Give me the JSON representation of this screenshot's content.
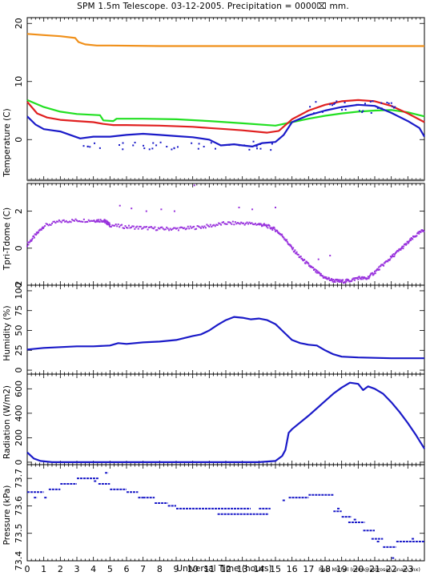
{
  "header": {
    "title": "SPM 1.5m Telescope. 03-12-2005. Precipitation = 0000⌧ mm."
  },
  "footer": {
    "xlabel": "Universal Time (hours)",
    "credit": "Raul Michel (rmm@astrosen.unam.mx)"
  },
  "colors": {
    "orange": "#f0901a",
    "green": "#22e022",
    "red": "#e02020",
    "blue": "#1a1ac8",
    "purple": "#9933dd",
    "gray": "#666666",
    "frame": "#000000"
  },
  "chart_data": [
    {
      "type": "line",
      "ylabel": "Temperature (C)",
      "xlim": [
        0,
        24
      ],
      "ylim": [
        -7,
        21
      ],
      "yticks": [
        0,
        10,
        20
      ],
      "xticks": [
        0,
        1,
        2,
        3,
        4,
        5,
        6,
        7,
        8,
        9,
        10,
        11,
        12,
        13,
        14,
        15,
        16,
        17,
        18,
        19,
        20,
        21,
        22,
        23
      ],
      "hline": -7,
      "series": [
        {
          "color": "orange",
          "points": [
            [
              0,
              18.2
            ],
            [
              1,
              18.0
            ],
            [
              2,
              17.8
            ],
            [
              2.9,
              17.5
            ],
            [
              3.1,
              16.8
            ],
            [
              3.5,
              16.4
            ],
            [
              4.2,
              16.2
            ],
            [
              5,
              16.2
            ],
            [
              8,
              16.1
            ],
            [
              12,
              16.1
            ],
            [
              16,
              16.1
            ],
            [
              20,
              16.1
            ],
            [
              24,
              16.1
            ]
          ]
        },
        {
          "color": "green",
          "points": [
            [
              0,
              6.8
            ],
            [
              1,
              5.6
            ],
            [
              2,
              4.8
            ],
            [
              3,
              4.4
            ],
            [
              4.4,
              4.2
            ],
            [
              4.6,
              3.3
            ],
            [
              5.2,
              3.2
            ],
            [
              5.4,
              3.6
            ],
            [
              7,
              3.6
            ],
            [
              9,
              3.5
            ],
            [
              11,
              3.2
            ],
            [
              13,
              2.8
            ],
            [
              15,
              2.4
            ],
            [
              16,
              3.0
            ],
            [
              17,
              3.6
            ],
            [
              18,
              4.1
            ],
            [
              19,
              4.5
            ],
            [
              20,
              4.8
            ],
            [
              21,
              5.0
            ],
            [
              22,
              5.1
            ],
            [
              23,
              4.7
            ],
            [
              24,
              4.0
            ]
          ]
        },
        {
          "color": "red",
          "points": [
            [
              0,
              6.5
            ],
            [
              0.6,
              4.5
            ],
            [
              1.2,
              3.8
            ],
            [
              2,
              3.4
            ],
            [
              3,
              3.2
            ],
            [
              4,
              3.0
            ],
            [
              4.6,
              2.7
            ],
            [
              5.2,
              2.5
            ],
            [
              6,
              2.5
            ],
            [
              8,
              2.4
            ],
            [
              10,
              2.2
            ],
            [
              11,
              2.0
            ],
            [
              12,
              1.8
            ],
            [
              13,
              1.6
            ],
            [
              14.5,
              1.2
            ],
            [
              15.2,
              1.5
            ],
            [
              16,
              3.5
            ],
            [
              17,
              5.0
            ],
            [
              18,
              6.0
            ],
            [
              19,
              6.6
            ],
            [
              20,
              6.8
            ],
            [
              21,
              6.6
            ],
            [
              22,
              5.8
            ],
            [
              23,
              4.5
            ],
            [
              24,
              3.0
            ]
          ]
        },
        {
          "color": "blue",
          "points": [
            [
              0,
              4.0
            ],
            [
              0.5,
              2.6
            ],
            [
              1,
              1.8
            ],
            [
              1.5,
              1.6
            ],
            [
              2,
              1.4
            ],
            [
              2.8,
              0.6
            ],
            [
              3.2,
              0.2
            ],
            [
              4,
              0.5
            ],
            [
              5,
              0.5
            ],
            [
              6,
              0.8
            ],
            [
              7,
              1.0
            ],
            [
              8,
              0.8
            ],
            [
              9,
              0.6
            ],
            [
              10,
              0.4
            ],
            [
              11,
              0.0
            ],
            [
              11.7,
              -1.0
            ],
            [
              12.5,
              -0.8
            ],
            [
              13,
              -1.0
            ],
            [
              13.6,
              -1.2
            ],
            [
              14.2,
              -0.6
            ],
            [
              15,
              -0.4
            ],
            [
              15.5,
              0.8
            ],
            [
              16,
              3.0
            ],
            [
              17,
              4.2
            ],
            [
              18,
              5.0
            ],
            [
              19,
              5.6
            ],
            [
              20,
              6.0
            ],
            [
              21,
              5.8
            ],
            [
              22,
              4.6
            ],
            [
              23,
              3.2
            ],
            [
              23.7,
              2.0
            ],
            [
              24,
              0.5
            ]
          ]
        }
      ]
    },
    {
      "type": "scatter",
      "ylabel": "Tpri-Tdome (C)",
      "xlim": [
        0,
        24
      ],
      "ylim": [
        -2,
        3.5
      ],
      "yticks": [
        -2,
        0,
        2
      ],
      "xticks": [
        0,
        1,
        2,
        3,
        4,
        5,
        6,
        7,
        8,
        9,
        10,
        11,
        12,
        13,
        14,
        15,
        16,
        17,
        18,
        19,
        20,
        21,
        22,
        23
      ],
      "series": [
        {
          "color": "purple",
          "points": [
            [
              0,
              0.2
            ],
            [
              0.5,
              0.7
            ],
            [
              1,
              1.2
            ],
            [
              2,
              1.45
            ],
            [
              3,
              1.5
            ],
            [
              4,
              1.5
            ],
            [
              4.6,
              1.5
            ],
            [
              4.8,
              1.4
            ],
            [
              5,
              1.25
            ],
            [
              6,
              1.15
            ],
            [
              7,
              1.1
            ],
            [
              8,
              1.05
            ],
            [
              9,
              1.05
            ],
            [
              10,
              1.1
            ],
            [
              11,
              1.2
            ],
            [
              12,
              1.35
            ],
            [
              13,
              1.35
            ],
            [
              14,
              1.3
            ],
            [
              14.5,
              1.2
            ],
            [
              15,
              1.0
            ],
            [
              15.5,
              0.6
            ],
            [
              16,
              0.0
            ],
            [
              16.5,
              -0.5
            ],
            [
              17,
              -0.9
            ],
            [
              17.5,
              -1.3
            ],
            [
              18,
              -1.6
            ],
            [
              18.5,
              -1.75
            ],
            [
              19,
              -1.8
            ],
            [
              19.5,
              -1.75
            ],
            [
              20,
              -1.6
            ],
            [
              20.5,
              -1.65
            ],
            [
              21,
              -1.3
            ],
            [
              21.5,
              -0.9
            ],
            [
              22,
              -0.5
            ],
            [
              22.5,
              -0.1
            ],
            [
              23,
              0.3
            ],
            [
              23.5,
              0.7
            ],
            [
              24,
              1.0
            ]
          ]
        }
      ],
      "outliers": [
        [
          5.6,
          2.3
        ],
        [
          6.3,
          2.15
        ],
        [
          7.2,
          2.0
        ],
        [
          8.1,
          2.1
        ],
        [
          8.9,
          2.0
        ],
        [
          10.1,
          3.4
        ],
        [
          12.8,
          2.2
        ],
        [
          13.6,
          2.1
        ],
        [
          15.0,
          2.2
        ],
        [
          17.6,
          -0.6
        ],
        [
          18.3,
          -0.4
        ]
      ]
    },
    {
      "type": "line",
      "ylabel": "Humidity (%)",
      "xlim": [
        0,
        24
      ],
      "ylim": [
        -5,
        107
      ],
      "yticks": [
        0,
        25,
        50,
        75,
        100
      ],
      "xticks": [
        0,
        1,
        2,
        3,
        4,
        5,
        6,
        7,
        8,
        9,
        10,
        11,
        12,
        13,
        14,
        15,
        16,
        17,
        18,
        19,
        20,
        21,
        22,
        23
      ],
      "series": [
        {
          "color": "blue",
          "points": [
            [
              0,
              26
            ],
            [
              1,
              28
            ],
            [
              2,
              29
            ],
            [
              3,
              30
            ],
            [
              4,
              30
            ],
            [
              5,
              31
            ],
            [
              5.5,
              34
            ],
            [
              6,
              33
            ],
            [
              7,
              35
            ],
            [
              8,
              36
            ],
            [
              9,
              38
            ],
            [
              10,
              43
            ],
            [
              10.5,
              45
            ],
            [
              11,
              50
            ],
            [
              11.5,
              57
            ],
            [
              12,
              63
            ],
            [
              12.5,
              67
            ],
            [
              13,
              66
            ],
            [
              13.5,
              64
            ],
            [
              14,
              65
            ],
            [
              14.5,
              63
            ],
            [
              15,
              58
            ],
            [
              15.5,
              48
            ],
            [
              16,
              38
            ],
            [
              16.5,
              34
            ],
            [
              17,
              32
            ],
            [
              17.5,
              31
            ],
            [
              18,
              25
            ],
            [
              18.5,
              20
            ],
            [
              19,
              17
            ],
            [
              20,
              16
            ],
            [
              21,
              15.5
            ],
            [
              22,
              15
            ],
            [
              23,
              15
            ],
            [
              24,
              15
            ]
          ]
        }
      ]
    },
    {
      "type": "line",
      "ylabel": "Radiation (W/m2)",
      "xlim": [
        0,
        24
      ],
      "ylim": [
        -20,
        720
      ],
      "yticks": [
        0,
        200,
        400,
        600
      ],
      "xticks": [
        0,
        1,
        2,
        3,
        4,
        5,
        6,
        7,
        8,
        9,
        10,
        11,
        12,
        13,
        14,
        15,
        16,
        17,
        18,
        19,
        20,
        21,
        22,
        23
      ],
      "series": [
        {
          "color": "blue",
          "points": [
            [
              0,
              80
            ],
            [
              0.4,
              30
            ],
            [
              0.8,
              10
            ],
            [
              1.5,
              0
            ],
            [
              5,
              0
            ],
            [
              10,
              0
            ],
            [
              14,
              0
            ],
            [
              15,
              10
            ],
            [
              15.4,
              50
            ],
            [
              15.6,
              100
            ],
            [
              15.8,
              240
            ],
            [
              16,
              270
            ],
            [
              17,
              380
            ],
            [
              18,
              500
            ],
            [
              18.5,
              560
            ],
            [
              19,
              610
            ],
            [
              19.5,
              650
            ],
            [
              20,
              640
            ],
            [
              20.3,
              590
            ],
            [
              20.6,
              620
            ],
            [
              21,
              600
            ],
            [
              21.5,
              560
            ],
            [
              22,
              490
            ],
            [
              22.5,
              410
            ],
            [
              23,
              320
            ],
            [
              23.5,
              220
            ],
            [
              24,
              110
            ]
          ]
        }
      ]
    },
    {
      "type": "scatter",
      "ylabel": "Pressure (kPa)",
      "xlim": [
        0,
        24
      ],
      "ylim": [
        73.4,
        73.75
      ],
      "yticks": [
        73.4,
        73.5,
        73.6,
        73.7
      ],
      "xticks": [
        0,
        1,
        2,
        3,
        4,
        5,
        6,
        7,
        8,
        9,
        10,
        11,
        12,
        13,
        14,
        15,
        16,
        17,
        18,
        19,
        20,
        21,
        22,
        23
      ],
      "segments": [
        [
          0,
          1.0,
          73.65
        ],
        [
          0.4,
          0.6,
          73.63
        ],
        [
          1.3,
          2.0,
          73.66
        ],
        [
          2.0,
          3.0,
          73.68
        ],
        [
          3.0,
          4.3,
          73.7
        ],
        [
          4.3,
          5.0,
          73.68
        ],
        [
          4.7,
          4.9,
          73.72
        ],
        [
          5.0,
          6.0,
          73.66
        ],
        [
          6.0,
          6.7,
          73.65
        ],
        [
          6.7,
          7.0,
          73.63
        ],
        [
          7.0,
          7.7,
          73.63
        ],
        [
          7.7,
          8.5,
          73.61
        ],
        [
          8.5,
          9.0,
          73.6
        ],
        [
          9.0,
          13.5,
          73.59
        ],
        [
          11.5,
          14.6,
          73.57
        ],
        [
          14.0,
          14.7,
          73.59
        ],
        [
          15.8,
          17.0,
          73.63
        ],
        [
          17.0,
          18.5,
          73.64
        ],
        [
          18.5,
          19.0,
          73.58
        ],
        [
          19.0,
          19.6,
          73.56
        ],
        [
          19.4,
          20.4,
          73.54
        ],
        [
          20.3,
          21.0,
          73.51
        ],
        [
          20.8,
          21.5,
          73.48
        ],
        [
          21.5,
          22.3,
          73.45
        ],
        [
          22.3,
          24.0,
          73.47
        ]
      ],
      "dots": [
        [
          1.1,
          73.63
        ],
        [
          18.8,
          73.59
        ],
        [
          19.8,
          73.55
        ],
        [
          21.2,
          73.47
        ],
        [
          22.1,
          73.41
        ],
        [
          23.3,
          73.48
        ],
        [
          15.5,
          73.62
        ],
        [
          4.1,
          73.69
        ]
      ]
    }
  ]
}
